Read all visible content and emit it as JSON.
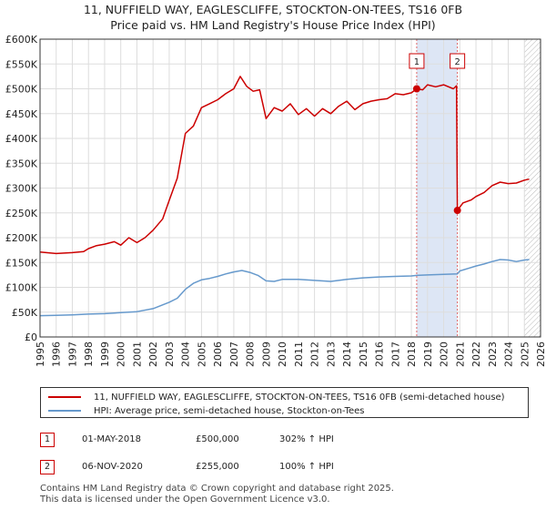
{
  "chart_data": {
    "type": "line",
    "title": "11, NUFFIELD WAY, EAGLESCLIFFE, STOCKTON-ON-TEES, TS16 0FB",
    "subtitle": "Price paid vs. HM Land Registry's House Price Index (HPI)",
    "xlim": [
      1995,
      2026
    ],
    "ylim": [
      0,
      600000
    ],
    "x_ticks": [
      "1995",
      "1996",
      "1997",
      "1998",
      "1999",
      "2000",
      "2001",
      "2002",
      "2003",
      "2004",
      "2005",
      "2006",
      "2007",
      "2008",
      "2009",
      "2010",
      "2011",
      "2012",
      "2013",
      "2014",
      "2015",
      "2016",
      "2017",
      "2018",
      "2019",
      "2020",
      "2021",
      "2022",
      "2023",
      "2024",
      "2025",
      "2026"
    ],
    "y_ticks": [
      {
        "value": 0,
        "label": "£0"
      },
      {
        "value": 50000,
        "label": "£50K"
      },
      {
        "value": 100000,
        "label": "£100K"
      },
      {
        "value": 150000,
        "label": "£150K"
      },
      {
        "value": 200000,
        "label": "£200K"
      },
      {
        "value": 250000,
        "label": "£250K"
      },
      {
        "value": 300000,
        "label": "£300K"
      },
      {
        "value": 350000,
        "label": "£350K"
      },
      {
        "value": 400000,
        "label": "£400K"
      },
      {
        "value": 450000,
        "label": "£450K"
      },
      {
        "value": 500000,
        "label": "£500K"
      },
      {
        "value": 550000,
        "label": "£550K"
      },
      {
        "value": 600000,
        "label": "£600K"
      }
    ],
    "grid": true,
    "shaded_range": [
      2018.33,
      2020.85
    ],
    "hatched_from": 2025.0,
    "series": [
      {
        "name": "11, NUFFIELD WAY, EAGLESCLIFFE, STOCKTON-ON-TEES, TS16 0FB (semi-detached house)",
        "color": "#cc0000",
        "x": [
          1995,
          1996,
          1997,
          1997.7,
          1998,
          1998.5,
          1999,
          1999.6,
          2000,
          2000.5,
          2001,
          2001.5,
          2002,
          2002.6,
          2003,
          2003.5,
          2004,
          2004.5,
          2005,
          2005.5,
          2006,
          2006.5,
          2007,
          2007.4,
          2007.8,
          2008.2,
          2008.6,
          2009,
          2009.5,
          2010,
          2010.5,
          2011,
          2011.5,
          2012,
          2012.5,
          2013,
          2013.5,
          2014,
          2014.5,
          2015,
          2015.5,
          2016,
          2016.5,
          2017,
          2017.5,
          2018,
          2018.33,
          2018.7,
          2019,
          2019.5,
          2020,
          2020.6,
          2020.8,
          2020.85,
          2021.2,
          2021.7,
          2022,
          2022.5,
          2023,
          2023.5,
          2024,
          2024.5,
          2025,
          2025.3
        ],
        "values": [
          171000,
          168000,
          170000,
          172000,
          178000,
          184000,
          187000,
          192000,
          185000,
          200000,
          190000,
          200000,
          215000,
          238000,
          275000,
          320000,
          410000,
          425000,
          462000,
          470000,
          478000,
          490000,
          500000,
          525000,
          505000,
          495000,
          498000,
          440000,
          462000,
          455000,
          470000,
          448000,
          460000,
          445000,
          460000,
          450000,
          465000,
          475000,
          458000,
          470000,
          475000,
          478000,
          480000,
          490000,
          488000,
          492000,
          500000,
          498000,
          508000,
          504000,
          508000,
          500000,
          506000,
          255000,
          270000,
          276000,
          283000,
          291000,
          305000,
          312000,
          309000,
          310000,
          316000,
          318000
        ]
      },
      {
        "name": "HPI: Average price, semi-detached house, Stockton-on-Tees",
        "color": "#6699cc",
        "x": [
          1995,
          1996,
          1997,
          1998,
          1999,
          2000,
          2001,
          2002,
          2003,
          2003.5,
          2004,
          2004.5,
          2005,
          2005.5,
          2006,
          2006.5,
          2007,
          2007.5,
          2008,
          2008.5,
          2009,
          2009.5,
          2010,
          2011,
          2012,
          2013,
          2014,
          2015,
          2016,
          2017,
          2018,
          2018.33,
          2019,
          2020,
          2020.85,
          2021,
          2021.5,
          2022,
          2022.5,
          2023,
          2023.5,
          2024,
          2024.5,
          2025,
          2025.3
        ],
        "values": [
          43000,
          43500,
          44500,
          46000,
          47000,
          49000,
          51000,
          57000,
          70000,
          78000,
          96000,
          108000,
          115000,
          118000,
          122000,
          127000,
          131000,
          134000,
          130000,
          124000,
          113000,
          112000,
          116000,
          116000,
          114000,
          112000,
          116000,
          119000,
          121000,
          122000,
          123000,
          124000,
          125000,
          126000,
          127000,
          133000,
          138000,
          143000,
          147000,
          152000,
          156000,
          155000,
          152000,
          155000,
          156000
        ]
      }
    ],
    "markers": [
      {
        "id": "1",
        "x": 2018.33,
        "value": 500000
      },
      {
        "id": "2",
        "x": 2020.85,
        "value": 255000
      }
    ]
  },
  "legend": {
    "property": "11, NUFFIELD WAY, EAGLESCLIFFE, STOCKTON-ON-TEES, TS16 0FB (semi-detached house)",
    "hpi": "HPI: Average price, semi-detached house, Stockton-on-Tees",
    "property_color": "#cc0000",
    "hpi_color": "#6699cc"
  },
  "transactions": [
    {
      "id": "1",
      "date": "01-MAY-2018",
      "price": "£500,000",
      "hpi_change": "302% ↑ HPI"
    },
    {
      "id": "2",
      "date": "06-NOV-2020",
      "price": "£255,000",
      "hpi_change": "100% ↑ HPI"
    }
  ],
  "footer": {
    "line1": "Contains HM Land Registry data © Crown copyright and database right 2025.",
    "line2": "This data is licensed under the Open Government Licence v3.0."
  }
}
